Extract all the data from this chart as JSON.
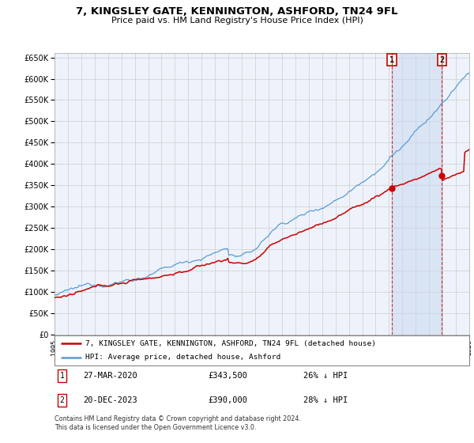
{
  "title": "7, KINGSLEY GATE, KENNINGTON, ASHFORD, TN24 9FL",
  "subtitle": "Price paid vs. HM Land Registry's House Price Index (HPI)",
  "legend_line1": "7, KINGSLEY GATE, KENNINGTON, ASHFORD, TN24 9FL (detached house)",
  "legend_line2": "HPI: Average price, detached house, Ashford",
  "annotation1_date": "27-MAR-2020",
  "annotation1_price": "£343,500",
  "annotation1_hpi": "26% ↓ HPI",
  "annotation2_date": "20-DEC-2023",
  "annotation2_price": "£390,000",
  "annotation2_hpi": "28% ↓ HPI",
  "footer": "Contains HM Land Registry data © Crown copyright and database right 2024.\nThis data is licensed under the Open Government Licence v3.0.",
  "hpi_color": "#5b9bd5",
  "price_color": "#cc0000",
  "grid_color": "#cccccc",
  "plot_bg": "#eef3fb",
  "shade_color": "#c8d8f0",
  "ylim": [
    0,
    660000
  ],
  "yticks": [
    0,
    50000,
    100000,
    150000,
    200000,
    250000,
    300000,
    350000,
    400000,
    450000,
    500000,
    550000,
    600000,
    650000
  ],
  "xlim_start": 1995,
  "xlim_end": 2026,
  "sale1_x": 2020.21,
  "sale2_x": 2023.96,
  "sale1_price": 343500,
  "sale2_price": 390000
}
